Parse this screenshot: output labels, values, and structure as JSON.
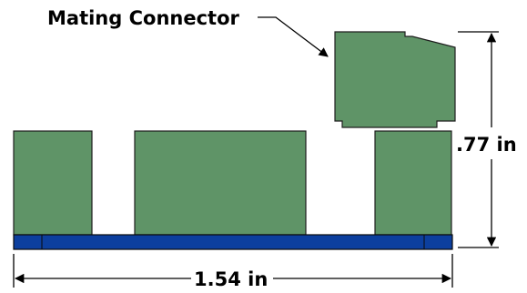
{
  "callout": {
    "label": "Mating Connector"
  },
  "dimensions": {
    "height_label": ".77 in",
    "width_label": "1.54 in"
  },
  "colors": {
    "component": "#5f9467",
    "board": "#0c3f9e",
    "line": "#000000"
  }
}
